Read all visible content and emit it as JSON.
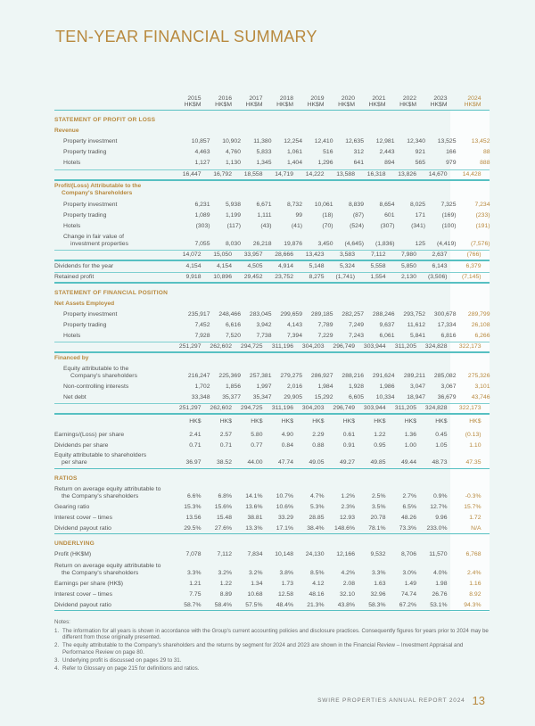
{
  "title": "TEN-YEAR FINANCIAL SUMMARY",
  "colors": {
    "accent": "#b8893e",
    "rule": "#57c0c2",
    "background": "#eef6f5"
  },
  "table": {
    "years": [
      "2015\nHK$M",
      "2016\nHK$M",
      "2017\nHK$M",
      "2018\nHK$M",
      "2019\nHK$M",
      "2020\nHK$M",
      "2021\nHK$M",
      "2022\nHK$M",
      "2023\nHK$M",
      "2024\nHK$M"
    ],
    "rows": [
      {
        "type": "section",
        "label": "STATEMENT OF PROFIT OR LOSS"
      },
      {
        "type": "sub",
        "label": "Revenue"
      },
      {
        "type": "row",
        "indent": true,
        "label": "Property investment",
        "values": [
          "10,857",
          "10,902",
          "11,380",
          "12,254",
          "12,410",
          "12,635",
          "12,981",
          "12,340",
          "13,525",
          "13,452"
        ]
      },
      {
        "type": "row",
        "indent": true,
        "label": "Property trading",
        "values": [
          "4,463",
          "4,760",
          "5,833",
          "1,061",
          "516",
          "312",
          "2,443",
          "921",
          "166",
          "88"
        ]
      },
      {
        "type": "row",
        "indent": true,
        "label": "Hotels",
        "values": [
          "1,127",
          "1,130",
          "1,345",
          "1,404",
          "1,296",
          "641",
          "894",
          "565",
          "979",
          "888"
        ]
      },
      {
        "type": "total",
        "label": "",
        "values": [
          "16,447",
          "16,792",
          "18,558",
          "14,719",
          "14,222",
          "13,588",
          "16,318",
          "13,826",
          "14,670",
          "14,428"
        ]
      },
      {
        "type": "sub2",
        "label": "Profit/(Loss) Attributable to the",
        "label2": "Company's Shareholders"
      },
      {
        "type": "row",
        "indent": true,
        "label": "Property investment",
        "values": [
          "6,231",
          "5,938",
          "6,671",
          "8,732",
          "10,061",
          "8,839",
          "8,654",
          "8,025",
          "7,325",
          "7,234"
        ]
      },
      {
        "type": "row",
        "indent": true,
        "label": "Property trading",
        "values": [
          "1,089",
          "1,199",
          "1,111",
          "99",
          "(18)",
          "(87)",
          "601",
          "171",
          "(169)",
          "(233)"
        ]
      },
      {
        "type": "row",
        "indent": true,
        "label": "Hotels",
        "values": [
          "(303)",
          "(117)",
          "(43)",
          "(41)",
          "(70)",
          "(524)",
          "(307)",
          "(341)",
          "(100)",
          "(191)"
        ]
      },
      {
        "type": "row2",
        "indent": true,
        "label": "Change in fair value of",
        "label2": "investment properties",
        "values": [
          "7,055",
          "8,030",
          "26,218",
          "19,876",
          "3,450",
          "(4,645)",
          "(1,836)",
          "125",
          "(4,419)",
          "(7,576)"
        ]
      },
      {
        "type": "total",
        "label": "",
        "values": [
          "14,072",
          "15,050",
          "33,957",
          "28,666",
          "13,423",
          "3,583",
          "7,112",
          "7,980",
          "2,637",
          "(766)"
        ]
      },
      {
        "type": "row",
        "label": "Dividends for the year",
        "values": [
          "4,154",
          "4,154",
          "4,505",
          "4,914",
          "5,148",
          "5,324",
          "5,558",
          "5,850",
          "6,143",
          "6,379"
        ]
      },
      {
        "type": "row",
        "boxed": true,
        "label": "Retained profit",
        "values": [
          "9,918",
          "10,896",
          "29,452",
          "23,752",
          "8,275",
          "(1,741)",
          "1,554",
          "2,130",
          "(3,506)",
          "(7,145)"
        ]
      },
      {
        "type": "section",
        "label": "STATEMENT OF FINANCIAL POSITION"
      },
      {
        "type": "sub",
        "label": "Net Assets Employed"
      },
      {
        "type": "row",
        "indent": true,
        "label": "Property investment",
        "values": [
          "235,917",
          "248,466",
          "283,045",
          "299,659",
          "289,185",
          "282,257",
          "288,246",
          "293,752",
          "300,678",
          "289,799"
        ]
      },
      {
        "type": "row",
        "indent": true,
        "label": "Property trading",
        "values": [
          "7,452",
          "6,616",
          "3,942",
          "4,143",
          "7,789",
          "7,249",
          "9,637",
          "11,612",
          "17,334",
          "26,108"
        ]
      },
      {
        "type": "row",
        "indent": true,
        "label": "Hotels",
        "values": [
          "7,928",
          "7,520",
          "7,738",
          "7,394",
          "7,229",
          "7,243",
          "6,061",
          "5,841",
          "6,816",
          "6,266"
        ]
      },
      {
        "type": "total",
        "label": "",
        "values": [
          "251,297",
          "262,602",
          "294,725",
          "311,196",
          "304,203",
          "296,749",
          "303,944",
          "311,205",
          "324,828",
          "322,173"
        ]
      },
      {
        "type": "sub",
        "label": "Financed by"
      },
      {
        "type": "row2",
        "indent": true,
        "label": "Equity attributable to the",
        "label2": "Company's shareholders",
        "values": [
          "216,247",
          "225,369",
          "257,381",
          "279,275",
          "286,927",
          "288,216",
          "291,624",
          "289,211",
          "285,082",
          "275,326"
        ]
      },
      {
        "type": "row",
        "indent": true,
        "label": "Non-controlling interests",
        "values": [
          "1,702",
          "1,856",
          "1,997",
          "2,016",
          "1,984",
          "1,928",
          "1,986",
          "3,047",
          "3,067",
          "3,101"
        ]
      },
      {
        "type": "row",
        "indent": true,
        "label": "Net debt",
        "values": [
          "33,348",
          "35,377",
          "35,347",
          "29,905",
          "15,292",
          "6,605",
          "10,334",
          "18,947",
          "36,679",
          "43,746"
        ]
      },
      {
        "type": "total",
        "label": "",
        "values": [
          "251,297",
          "262,602",
          "294,725",
          "311,196",
          "304,203",
          "296,749",
          "303,944",
          "311,205",
          "324,828",
          "322,173"
        ]
      },
      {
        "type": "hk",
        "label": "",
        "values": [
          "HK$",
          "HK$",
          "HK$",
          "HK$",
          "HK$",
          "HK$",
          "HK$",
          "HK$",
          "HK$",
          "HK$"
        ]
      },
      {
        "type": "row",
        "label": "Earnings/(Loss) per share",
        "values": [
          "2.41",
          "2.57",
          "5.80",
          "4.90",
          "2.29",
          "0.61",
          "1.22",
          "1.36",
          "0.45",
          "(0.13)"
        ]
      },
      {
        "type": "row",
        "label": "Dividends per share",
        "values": [
          "0.71",
          "0.71",
          "0.77",
          "0.84",
          "0.88",
          "0.91",
          "0.95",
          "1.00",
          "1.05",
          "1.10"
        ]
      },
      {
        "type": "row2",
        "lastline": true,
        "label": "Equity attributable to shareholders",
        "label2": "per share",
        "values": [
          "36.97",
          "38.52",
          "44.00",
          "47.74",
          "49.05",
          "49.27",
          "49.85",
          "49.44",
          "48.73",
          "47.35"
        ]
      },
      {
        "type": "section",
        "label": "RATIOS"
      },
      {
        "type": "row2",
        "label": "Return on average equity attributable to",
        "label2": "the Company's shareholders",
        "values": [
          "6.6%",
          "6.8%",
          "14.1%",
          "10.7%",
          "4.7%",
          "1.2%",
          "2.5%",
          "2.7%",
          "0.9%",
          "-0.3%"
        ]
      },
      {
        "type": "row",
        "label": "Gearing ratio",
        "values": [
          "15.3%",
          "15.6%",
          "13.6%",
          "10.6%",
          "5.3%",
          "2.3%",
          "3.5%",
          "6.5%",
          "12.7%",
          "15.7%"
        ]
      },
      {
        "type": "row",
        "label": "Interest cover – times",
        "values": [
          "13.56",
          "15.48",
          "38.81",
          "33.29",
          "28.85",
          "12.93",
          "20.78",
          "48.26",
          "9.96",
          "1.72"
        ]
      },
      {
        "type": "row",
        "lastline": true,
        "label": "Dividend payout ratio",
        "values": [
          "29.5%",
          "27.6%",
          "13.3%",
          "17.1%",
          "38.4%",
          "148.6%",
          "78.1%",
          "73.3%",
          "233.0%",
          "N/A"
        ]
      },
      {
        "type": "section",
        "label": "UNDERLYING"
      },
      {
        "type": "row",
        "label": "Profit (HK$M)",
        "values": [
          "7,078",
          "7,112",
          "7,834",
          "10,148",
          "24,130",
          "12,166",
          "9,532",
          "8,706",
          "11,570",
          "6,768"
        ]
      },
      {
        "type": "row2",
        "label": "Return on average equity attributable to",
        "label2": "the Company's shareholders",
        "values": [
          "3.3%",
          "3.2%",
          "3.2%",
          "3.8%",
          "8.5%",
          "4.2%",
          "3.3%",
          "3.0%",
          "4.0%",
          "2.4%"
        ]
      },
      {
        "type": "row",
        "label": "Earnings per share (HK$)",
        "values": [
          "1.21",
          "1.22",
          "1.34",
          "1.73",
          "4.12",
          "2.08",
          "1.63",
          "1.49",
          "1.98",
          "1.16"
        ]
      },
      {
        "type": "row",
        "label": "Interest cover – times",
        "values": [
          "7.75",
          "8.89",
          "10.68",
          "12.58",
          "48.16",
          "32.10",
          "32.96",
          "74.74",
          "26.76",
          "8.92"
        ]
      },
      {
        "type": "row",
        "lastline": true,
        "label": "Dividend payout ratio",
        "values": [
          "58.7%",
          "58.4%",
          "57.5%",
          "48.4%",
          "21.3%",
          "43.8%",
          "58.3%",
          "67.2%",
          "53.1%",
          "94.3%"
        ]
      }
    ]
  },
  "notes": {
    "heading": "Notes:",
    "items": [
      {
        "num": "1.",
        "text": "The information for all years is shown in accordance with the Group's current accounting policies and disclosure practices. Consequently figures for years prior to 2024 may be different from those originally presented."
      },
      {
        "num": "2.",
        "text": "The equity attributable to the Company's shareholders and the returns by segment for 2024 and 2023 are shown in the Financial Review – Investment Appraisal and Performance Review on page 80."
      },
      {
        "num": "3.",
        "text": "Underlying profit is discussed on pages 29 to 31."
      },
      {
        "num": "4.",
        "text": "Refer to Glossary on page 215 for definitions and ratios."
      }
    ]
  },
  "footer": {
    "report": "SWIRE PROPERTIES ANNUAL REPORT 2024",
    "page": "13"
  }
}
